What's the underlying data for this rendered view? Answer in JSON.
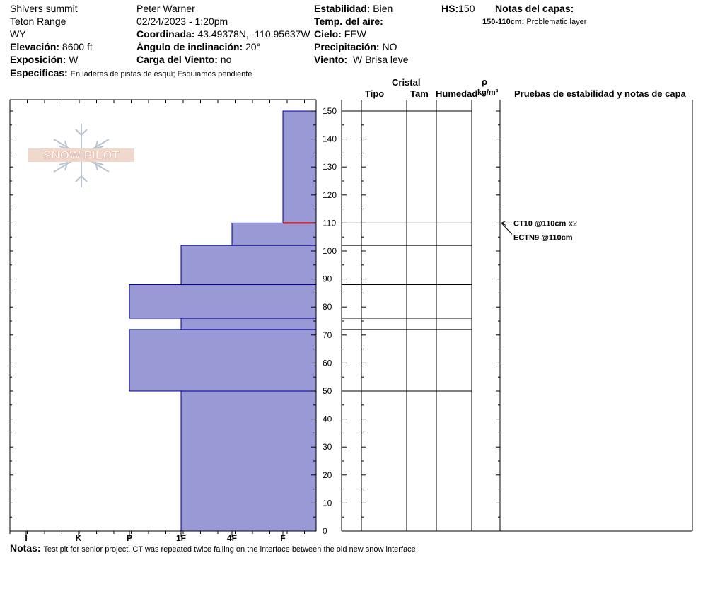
{
  "header": {
    "location": "Shivers summit",
    "range": "Teton Range",
    "state": "WY",
    "elevation_label": "Elevación:",
    "elevation_value": "8600 ft",
    "aspect_label": "Exposición:",
    "aspect_value": "W",
    "specifics_label": "Especificas:",
    "specifics_value": "En laderas de pistas de esquí; Esquiamos pendiente",
    "observer": "Peter Warner",
    "datetime": "02/24/2023 - 1:20pm",
    "coord_label": "Coordinada:",
    "coord_value": "43.49378N, -110.95637W",
    "slope_label": "Ángulo de inclinación:",
    "slope_value": "20°",
    "wind_load_label": "Carga del Viento:",
    "wind_load_value": "no",
    "stability_label": "Estabilidad:",
    "stability_value": "Bien",
    "air_temp_label": "Temp. del aire:",
    "sky_label": "Cielo:",
    "sky_value": "FEW",
    "precip_label": "Precipitación:",
    "precip_value": "NO",
    "wind_label": "Viento:",
    "wind_value": "W Brisa leve",
    "hs_label": "HS:",
    "hs_value": "150",
    "layer_notes_label": "Notas del capas:",
    "layer_note_range": "150-110cm:",
    "layer_note_text": "Problematic layer"
  },
  "columns": {
    "crystal": "Cristal",
    "type": "Tipo",
    "size": "Tam",
    "moisture": "Humedad",
    "rho": "ρ",
    "density_unit": "kg/m³",
    "tests_notes": "Pruebas de estabilidad y notas de capa"
  },
  "logo_text": "SNOW PILOT",
  "tests": [
    {
      "text": "CT10 @110cm",
      "suffix": "x2",
      "depth": 110
    },
    {
      "text": "ECTN9 @110cm",
      "suffix": "",
      "depth": 110
    }
  ],
  "notes": {
    "label": "Notas:",
    "text": "Test pit for senior project. CT was repeated twice failing on the interface between the old new snow interface"
  },
  "colors": {
    "profile_fill": "#9999d6",
    "profile_stroke": "#000099",
    "weak_layer": "#cc0000"
  },
  "chart_data": {
    "type": "bar",
    "orientation": "horizontal",
    "ylabel": "",
    "ylim": [
      0,
      150
    ],
    "y_ticks": [
      0,
      10,
      20,
      30,
      40,
      50,
      60,
      70,
      80,
      90,
      100,
      110,
      120,
      130,
      140,
      150
    ],
    "hardness_scale": [
      "I",
      "K",
      "P",
      "1F",
      "4F",
      "F"
    ],
    "layers": [
      {
        "bottom": 0,
        "top": 50,
        "hardness": "1F"
      },
      {
        "bottom": 50,
        "top": 72,
        "hardness": "P"
      },
      {
        "bottom": 72,
        "top": 76,
        "hardness": "1F"
      },
      {
        "bottom": 76,
        "top": 88,
        "hardness": "P"
      },
      {
        "bottom": 88,
        "top": 102,
        "hardness": "1F"
      },
      {
        "bottom": 102,
        "top": 110,
        "hardness": "4F"
      },
      {
        "bottom": 110,
        "top": 150,
        "hardness": "F"
      }
    ],
    "layer_boundaries": [
      150,
      110,
      102,
      88,
      76,
      72,
      50
    ],
    "weak_layer_depth": 110
  }
}
